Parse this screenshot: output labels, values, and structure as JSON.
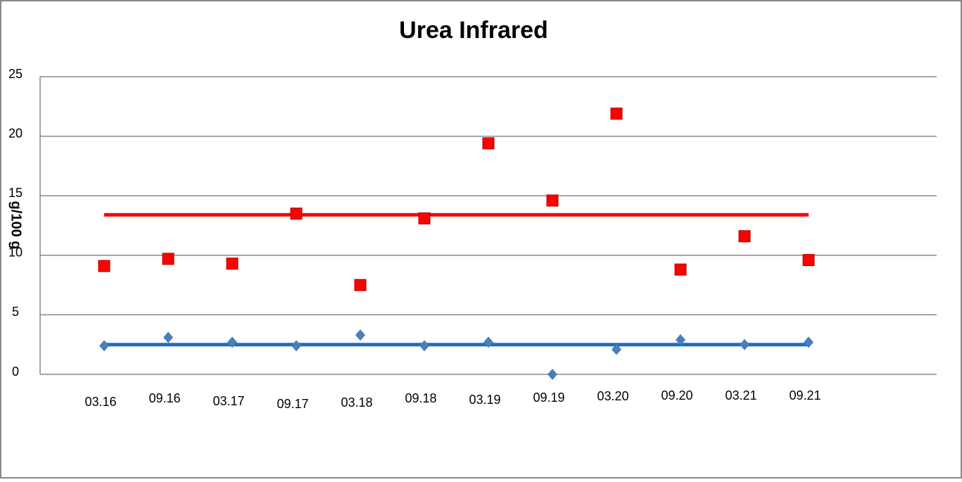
{
  "chart_data": {
    "type": "scatter",
    "title": "Urea Infrared",
    "y_label": "g/100 g",
    "categories": [
      "03.16",
      "09.16",
      "03.17",
      "09.17",
      "03.18",
      "09.18",
      "03.19",
      "09.19",
      "03.20",
      "09.20",
      "03.21",
      "09.21"
    ],
    "series": [
      {
        "color": "#ff0000",
        "marker": "square",
        "values": [
          9.1,
          9.7,
          9.3,
          13.5,
          7.5,
          13.1,
          19.4,
          14.6,
          21.9,
          8.8,
          11.6,
          9.6
        ]
      },
      {
        "color": "#4a7ebb",
        "marker": "diamond",
        "values": [
          2.4,
          3.1,
          2.7,
          2.4,
          3.3,
          2.4,
          2.7,
          0,
          2.1,
          2.9,
          2.5,
          2.7
        ]
      }
    ],
    "hlines": [
      {
        "value": 13.4,
        "color": "#ff0000"
      },
      {
        "value": 2.5,
        "color": "#1f6fb8"
      }
    ],
    "ylim": [
      0,
      25
    ],
    "yticks": [
      0,
      5,
      10,
      15,
      20,
      25
    ],
    "grid": true
  }
}
